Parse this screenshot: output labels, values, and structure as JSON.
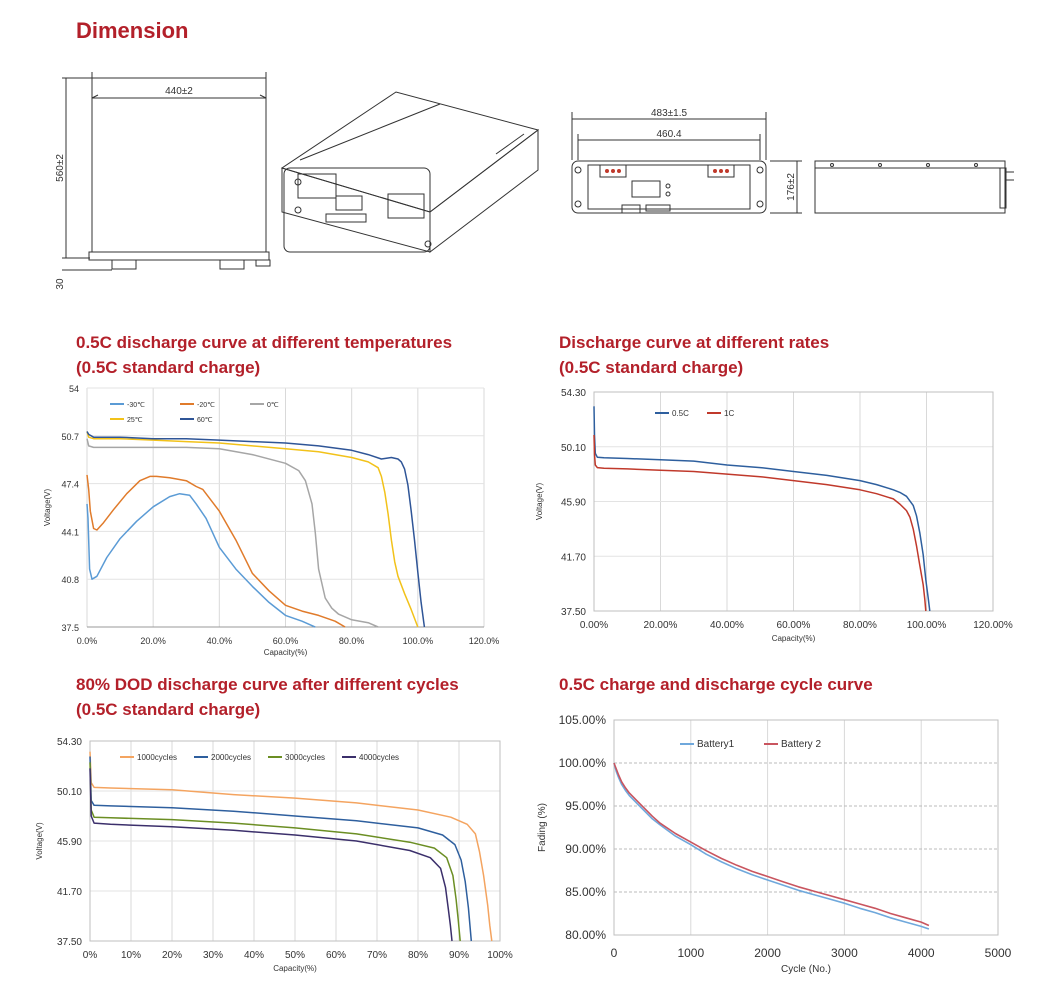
{
  "page": {
    "dimension_title": "Dimension",
    "charts_titles": [
      {
        "line1": "0.5C discharge curve at different temperatures",
        "line2": "(0.5C standard charge)"
      },
      {
        "line1": "Discharge curve at different rates",
        "line2": "(0.5C standard charge)"
      },
      {
        "line1": "80% DOD discharge curve after different cycles",
        "line2": "(0.5C standard charge)"
      },
      {
        "line1": "0.5C charge and discharge cycle curve",
        "line2": ""
      }
    ]
  },
  "dimensions": {
    "front_width": "440±2",
    "front_height": "560±2",
    "foot_height": "30",
    "rack_width": "483±1.5",
    "inner_width": "460.4",
    "side_height": "176±2"
  },
  "colors": {
    "title_red": "#b3202a",
    "c_m30": "#5b9bd5",
    "c_m20": "#e07b2b",
    "c_0": "#a6a6a6",
    "c_25": "#f2c21a",
    "c_60": "#2f5597",
    "c_05c": "#2e5f9e",
    "c_1c": "#c0392b",
    "c_1000": "#f4a460",
    "c_2000": "#2e5f9e",
    "c_3000": "#6b8e23",
    "c_4000": "#3b2f6b",
    "c_b1": "#6fa8dc",
    "c_b2": "#c9555f"
  },
  "chart_data": [
    {
      "type": "line",
      "xlabel": "Capacity(%)",
      "ylabel": "Voltage(V)",
      "xlim": [
        0,
        120
      ],
      "ylim": [
        37.5,
        54
      ],
      "xticks": [
        "0.0%",
        "20.0%",
        "40.0%",
        "60.0%",
        "80.0%",
        "100.0%",
        "120.0%"
      ],
      "yticks": [
        "37.5",
        "40.8",
        "44.1",
        "47.4",
        "50.7",
        "54"
      ],
      "legend": "top-left",
      "grid": true,
      "series": [
        {
          "name": "-30℃",
          "color": "#5b9bd5",
          "x": [
            0,
            0.3,
            0.8,
            1.5,
            3,
            6,
            10,
            15,
            20,
            25,
            28,
            31,
            33,
            36,
            40,
            45,
            50,
            55,
            60,
            65,
            69
          ],
          "y": [
            46.0,
            45.0,
            41.5,
            40.8,
            41.0,
            42.3,
            43.6,
            44.8,
            45.8,
            46.5,
            46.7,
            46.6,
            46.0,
            45.0,
            43.0,
            41.5,
            40.3,
            39.2,
            38.3,
            37.9,
            37.5
          ]
        },
        {
          "name": "-20℃",
          "color": "#e07b2b",
          "x": [
            0,
            0.5,
            1,
            2,
            3,
            5,
            8,
            12,
            16,
            19,
            21,
            25,
            30,
            33,
            35,
            40,
            45,
            50,
            55,
            60,
            65,
            70,
            75,
            78
          ],
          "y": [
            48.0,
            47.0,
            45.5,
            44.3,
            44.2,
            44.7,
            45.6,
            46.7,
            47.6,
            47.9,
            47.9,
            47.8,
            47.6,
            47.2,
            47.0,
            45.5,
            43.5,
            41.2,
            40.0,
            39.0,
            38.6,
            38.3,
            37.9,
            37.5
          ]
        },
        {
          "name": "0℃",
          "color": "#a6a6a6",
          "x": [
            0,
            0.5,
            2,
            10,
            20,
            30,
            40,
            50,
            60,
            64,
            66,
            68,
            69,
            70,
            72,
            74,
            76,
            80,
            85,
            88
          ],
          "y": [
            50.5,
            50.0,
            49.9,
            49.9,
            49.9,
            49.9,
            49.8,
            49.4,
            48.8,
            48.3,
            47.6,
            46.0,
            44.0,
            41.5,
            39.5,
            38.8,
            38.4,
            38.0,
            37.8,
            37.5
          ]
        },
        {
          "name": "25℃",
          "color": "#f2c21a",
          "x": [
            0,
            0.5,
            2,
            10,
            20,
            30,
            40,
            50,
            60,
            70,
            80,
            85,
            88,
            89,
            90,
            91,
            92,
            93,
            94,
            96,
            98,
            100
          ],
          "y": [
            51.0,
            50.6,
            50.5,
            50.5,
            50.4,
            50.3,
            50.2,
            50.0,
            49.8,
            49.6,
            49.2,
            48.9,
            48.5,
            47.9,
            46.8,
            45.3,
            43.5,
            42.0,
            41.0,
            39.8,
            38.7,
            37.5
          ]
        },
        {
          "name": "60℃",
          "color": "#2f5597",
          "x": [
            0,
            0.5,
            2,
            10,
            20,
            30,
            40,
            50,
            60,
            70,
            80,
            85,
            89,
            92,
            94,
            95,
            96,
            97,
            98,
            99,
            100,
            101,
            102
          ],
          "y": [
            51.0,
            50.8,
            50.6,
            50.6,
            50.5,
            50.5,
            50.4,
            50.3,
            50.2,
            50.0,
            49.7,
            49.4,
            49.1,
            49.2,
            49.1,
            48.9,
            48.4,
            47.3,
            45.5,
            43.5,
            41.3,
            39.2,
            37.5
          ]
        }
      ]
    },
    {
      "type": "line",
      "xlabel": "Capacity(%)",
      "ylabel": "Voltage(V)",
      "xlim": [
        0,
        120
      ],
      "ylim": [
        37.5,
        54.3
      ],
      "xticks": [
        "0.00%",
        "20.00%",
        "40.00%",
        "60.00%",
        "80.00%",
        "100.00%",
        "120.00%"
      ],
      "yticks": [
        "37.50",
        "41.70",
        "45.90",
        "50.10",
        "54.30"
      ],
      "legend": "top-left",
      "grid": true,
      "series": [
        {
          "name": "0.5C",
          "color": "#2e5f9e",
          "x": [
            0,
            0.15,
            0.4,
            1,
            3,
            10,
            20,
            30,
            40,
            50,
            60,
            70,
            80,
            85,
            90,
            92,
            94,
            96,
            97,
            98,
            99,
            99.8,
            100.5,
            101
          ],
          "y": [
            53.2,
            51.0,
            49.6,
            49.3,
            49.25,
            49.2,
            49.1,
            49.0,
            48.7,
            48.5,
            48.2,
            47.9,
            47.5,
            47.2,
            46.8,
            46.6,
            46.3,
            45.6,
            44.8,
            43.5,
            41.8,
            39.9,
            38.5,
            37.5
          ]
        },
        {
          "name": "1C",
          "color": "#c0392b",
          "x": [
            0,
            0.15,
            0.4,
            1,
            3,
            10,
            20,
            30,
            40,
            50,
            60,
            70,
            80,
            85,
            90,
            92,
            94,
            95,
            96,
            97,
            98,
            99,
            99.5,
            99.8
          ],
          "y": [
            51.0,
            49.5,
            48.7,
            48.5,
            48.45,
            48.4,
            48.3,
            48.2,
            48.0,
            47.8,
            47.5,
            47.2,
            46.8,
            46.5,
            46.1,
            45.7,
            45.2,
            44.7,
            43.8,
            42.5,
            41.0,
            39.5,
            38.4,
            37.5
          ]
        }
      ]
    },
    {
      "type": "line",
      "xlabel": "Capacity(%)",
      "ylabel": "Voltage(V)",
      "xlim": [
        0,
        100
      ],
      "ylim": [
        37.5,
        54.3
      ],
      "xticks": [
        "0%",
        "10%",
        "20%",
        "30%",
        "40%",
        "50%",
        "60%",
        "70%",
        "80%",
        "90%",
        "100%"
      ],
      "yticks": [
        "37.50",
        "41.70",
        "45.90",
        "50.10",
        "54.30"
      ],
      "legend": "top-left",
      "grid": true,
      "series": [
        {
          "name": "1000cycles",
          "color": "#f4a460",
          "x": [
            0,
            0.3,
            1,
            5,
            20,
            35,
            50,
            65,
            80,
            88,
            92,
            94,
            95,
            96,
            97,
            97.5,
            98
          ],
          "y": [
            53.4,
            50.8,
            50.4,
            50.35,
            50.2,
            49.8,
            49.5,
            49.1,
            48.5,
            47.9,
            47.3,
            46.5,
            45.0,
            43.0,
            40.5,
            38.8,
            37.5
          ]
        },
        {
          "name": "2000cycles",
          "color": "#2e5f9e",
          "x": [
            0,
            0.3,
            1,
            5,
            20,
            35,
            50,
            65,
            80,
            86,
            89,
            90.5,
            91.5,
            92.3,
            93
          ],
          "y": [
            53.0,
            49.3,
            48.9,
            48.85,
            48.7,
            48.4,
            48.0,
            47.6,
            47.0,
            46.4,
            45.6,
            44.3,
            42.5,
            40.3,
            37.5
          ]
        },
        {
          "name": "3000cycles",
          "color": "#6b8e23",
          "x": [
            0,
            0.3,
            1,
            5,
            20,
            35,
            50,
            65,
            78,
            84,
            87,
            88.5,
            89.3,
            89.8,
            90.3
          ],
          "y": [
            52.5,
            48.5,
            47.9,
            47.85,
            47.7,
            47.4,
            47.0,
            46.5,
            45.8,
            45.3,
            44.5,
            43.0,
            41.0,
            39.3,
            37.5
          ]
        },
        {
          "name": "4000cycles",
          "color": "#3b2f6b",
          "x": [
            0,
            0.3,
            1,
            5,
            20,
            35,
            50,
            65,
            78,
            83,
            85.5,
            86.7,
            87.4,
            87.9,
            88.3
          ],
          "y": [
            52.0,
            48.0,
            47.4,
            47.3,
            47.1,
            46.8,
            46.4,
            45.9,
            45.1,
            44.5,
            43.6,
            42.0,
            40.2,
            38.8,
            37.5
          ]
        }
      ]
    },
    {
      "type": "line",
      "xlabel": "Cycle  (No.)",
      "ylabel": "Fading (%)",
      "xlim": [
        0,
        5000
      ],
      "ylim": [
        80,
        105
      ],
      "xticks": [
        "0",
        "1000",
        "2000",
        "3000",
        "4000",
        "5000"
      ],
      "yticks": [
        "80.00%",
        "85.00%",
        "90.00%",
        "95.00%",
        "100.00%",
        "105.00%"
      ],
      "legend": "top-center",
      "grid": true,
      "series": [
        {
          "name": "Battery1",
          "color": "#6fa8dc",
          "x": [
            0,
            30,
            60,
            100,
            150,
            200,
            300,
            400,
            500,
            600,
            800,
            1000,
            1200,
            1400,
            1600,
            1800,
            2000,
            2200,
            2400,
            2600,
            2800,
            3000,
            3200,
            3400,
            3600,
            3800,
            4000,
            4100
          ],
          "y": [
            100,
            99.0,
            98.3,
            97.5,
            96.8,
            96.2,
            95.3,
            94.4,
            93.5,
            92.8,
            91.5,
            90.5,
            89.4,
            88.5,
            87.7,
            87.0,
            86.4,
            85.8,
            85.2,
            84.7,
            84.2,
            83.7,
            83.1,
            82.6,
            82.0,
            81.5,
            81.0,
            80.7
          ]
        },
        {
          "name": "Battery 2",
          "color": "#c9555f",
          "x": [
            0,
            30,
            60,
            100,
            150,
            200,
            300,
            400,
            500,
            600,
            800,
            1000,
            1200,
            1400,
            1600,
            1800,
            2000,
            2200,
            2400,
            2600,
            2800,
            3000,
            3200,
            3400,
            3600,
            3800,
            4000,
            4100
          ],
          "y": [
            100,
            99.3,
            98.6,
            97.8,
            97.1,
            96.5,
            95.6,
            94.7,
            93.8,
            93.0,
            91.8,
            90.8,
            89.8,
            88.9,
            88.1,
            87.4,
            86.8,
            86.2,
            85.6,
            85.1,
            84.6,
            84.1,
            83.6,
            83.1,
            82.5,
            82.0,
            81.5,
            81.1
          ]
        }
      ]
    }
  ]
}
